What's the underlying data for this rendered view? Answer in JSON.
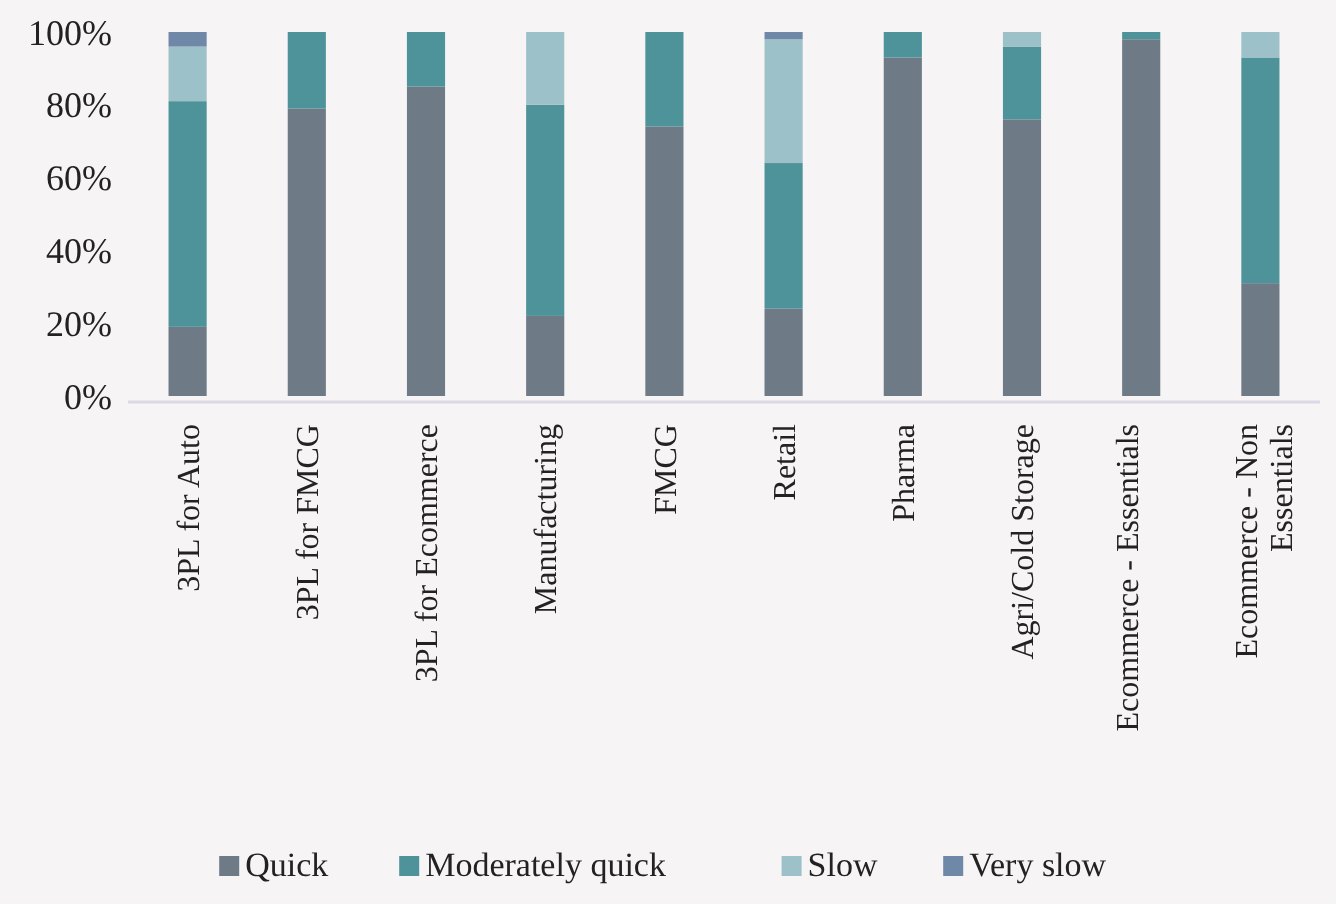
{
  "chart_data": {
    "type": "bar",
    "stacked": true,
    "categories": [
      "3PL for Auto",
      "3PL for FMCG",
      "3PL for Ecommerce",
      "Manufacturing",
      "FMCG",
      "Retail",
      "Pharma",
      "Agri/Cold Storage",
      "Ecommerce - Essentials",
      "Ecommerce - Non Essentials"
    ],
    "series": [
      {
        "name": "Quick",
        "color": "#6e7b87",
        "values": [
          19,
          79,
          85,
          22,
          74,
          24,
          93,
          76,
          98,
          31
        ]
      },
      {
        "name": "Moderately quick",
        "color": "#4e939a",
        "values": [
          62,
          21,
          15,
          58,
          26,
          40,
          7,
          20,
          2,
          62
        ]
      },
      {
        "name": "Slow",
        "color": "#9dc1c8",
        "values": [
          15,
          0,
          0,
          20,
          0,
          34,
          0,
          4,
          0,
          7
        ]
      },
      {
        "name": "Very slow",
        "color": "#6f88a8",
        "values": [
          4,
          0,
          0,
          0,
          0,
          2,
          0,
          0,
          0,
          0
        ]
      }
    ],
    "ylim": [
      0,
      100
    ],
    "yticks": [
      {
        "value": 0,
        "label": "0%"
      },
      {
        "value": 20,
        "label": "20%"
      },
      {
        "value": 40,
        "label": "40%"
      },
      {
        "value": 60,
        "label": "60%"
      },
      {
        "value": 80,
        "label": "80%"
      },
      {
        "value": 100,
        "label": "100%"
      }
    ],
    "grid": false,
    "legend": "bottom"
  }
}
